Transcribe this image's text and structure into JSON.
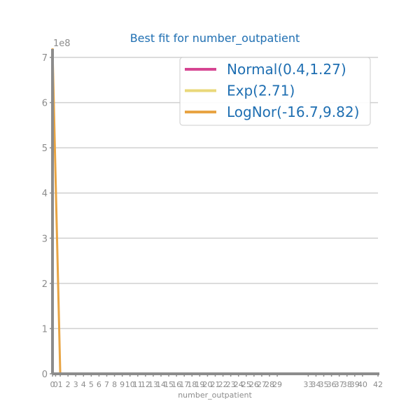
{
  "chart_data": {
    "type": "line",
    "title": "Best fit for number_outpatient",
    "xlabel": "number_outpatient",
    "ylabel": "",
    "y_offset_label": "1e8",
    "x_ticks": [
      0,
      0.4,
      1,
      2,
      3,
      4,
      5,
      6,
      7,
      8,
      9,
      10,
      11,
      12,
      13,
      14,
      15,
      16,
      17,
      18,
      19,
      20,
      21,
      22,
      23,
      24,
      25,
      26,
      27,
      28,
      29,
      33,
      34,
      35,
      36,
      37,
      38,
      39,
      40,
      42
    ],
    "x_tick_labels": [
      "0",
      "0",
      "1",
      "2",
      "3",
      "4",
      "5",
      "6",
      "7",
      "8",
      "9",
      "10",
      "11",
      "12",
      "13",
      "14",
      "15",
      "16",
      "17",
      "18",
      "19",
      "20",
      "21",
      "22",
      "23",
      "24",
      "25",
      "26",
      "27",
      "28",
      "29",
      "33",
      "34",
      "35",
      "36",
      "37",
      "38",
      "39",
      "40",
      "42"
    ],
    "y_ticks": [
      0,
      1,
      2,
      3,
      4,
      5,
      6,
      7
    ],
    "y_tick_labels": [
      "0",
      "1",
      "2",
      "3",
      "4",
      "5",
      "6",
      "7"
    ],
    "xlim": [
      0,
      42
    ],
    "ylim": [
      0,
      7.2
    ],
    "grid": "horizontal",
    "legend_position": "top-right",
    "colors": {
      "title": "#1f6fb2",
      "axis": "#8c8c8c",
      "grid": "#d0d0d0",
      "legend_text": "#1f6fb2"
    },
    "series": [
      {
        "name": "Normal(0.4,1.27)",
        "color": "#d64592",
        "x": [
          0,
          0.4,
          1,
          2,
          3,
          4,
          5,
          42
        ],
        "y": [
          0,
          0,
          0,
          0,
          0,
          0,
          0,
          0
        ]
      },
      {
        "name": "Exp(2.71)",
        "color": "#ead87a",
        "x": [
          0,
          1,
          2,
          5,
          10,
          42
        ],
        "y": [
          0,
          0,
          0,
          0,
          0,
          0
        ]
      },
      {
        "name": "LogNor(-16.7,9.82)",
        "color": "#e8a443",
        "x": [
          0,
          1,
          42
        ],
        "y": [
          7.2,
          0,
          0
        ]
      }
    ]
  }
}
